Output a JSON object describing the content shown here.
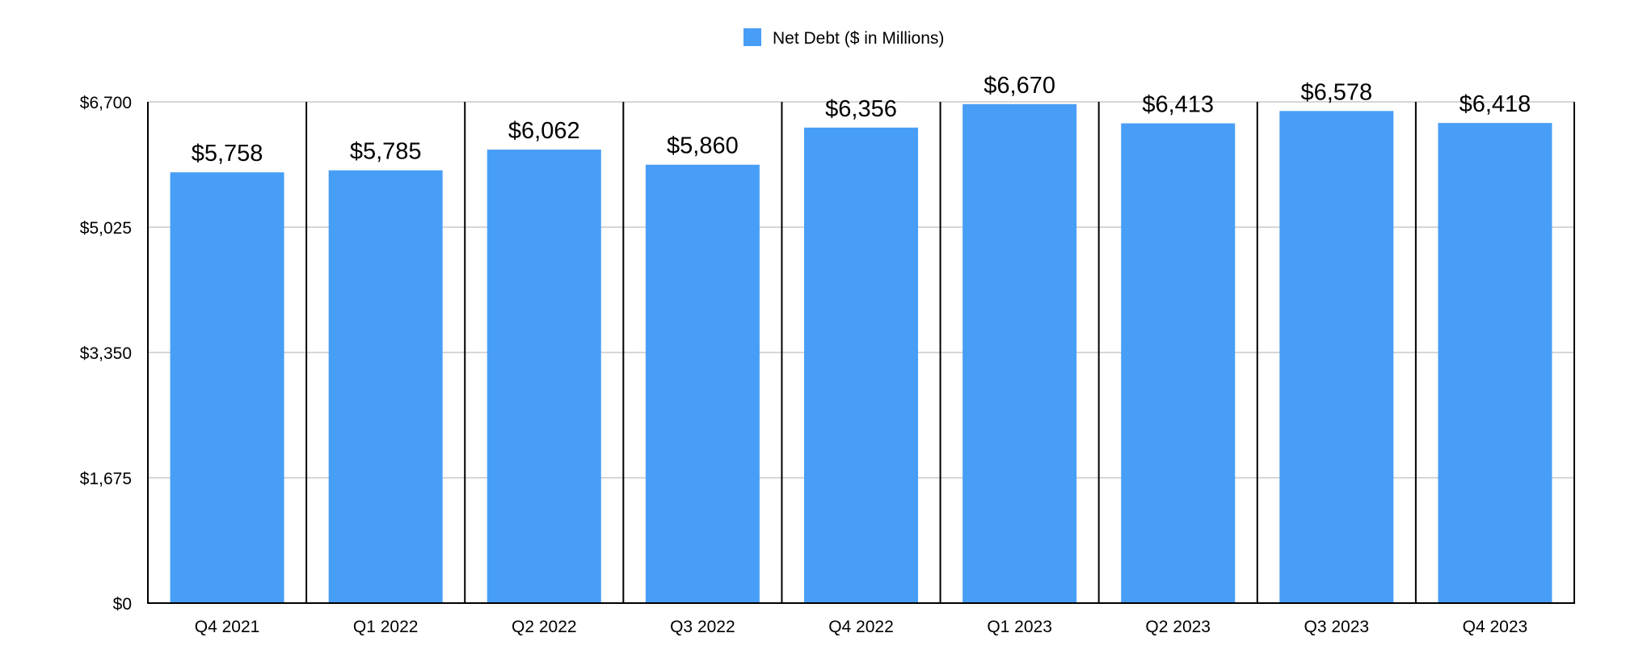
{
  "chart_data": {
    "type": "bar",
    "title": "",
    "legend": {
      "label": "Net Debt ($ in Millions)",
      "position": "top-center"
    },
    "categories": [
      "Q4 2021",
      "Q1 2022",
      "Q2 2022",
      "Q3 2022",
      "Q4 2022",
      "Q1 2023",
      "Q2 2023",
      "Q3 2023",
      "Q4 2023"
    ],
    "values": [
      5758,
      5785,
      6062,
      5860,
      6356,
      6670,
      6413,
      6578,
      6418
    ],
    "data_labels": [
      "$5,758",
      "$5,785",
      "$6,062",
      "$5,860",
      "$6,356",
      "$6,670",
      "$6,413",
      "$6,578",
      "$6,418"
    ],
    "yticks": [
      0,
      1675,
      3350,
      5025,
      6700
    ],
    "ytick_labels": [
      "$0",
      "$1,675",
      "$3,350",
      "$5,025",
      "$6,700"
    ],
    "ylim": [
      0,
      6700
    ],
    "xlabel": "",
    "ylabel": "",
    "grid": true,
    "color": "#489ef6"
  }
}
